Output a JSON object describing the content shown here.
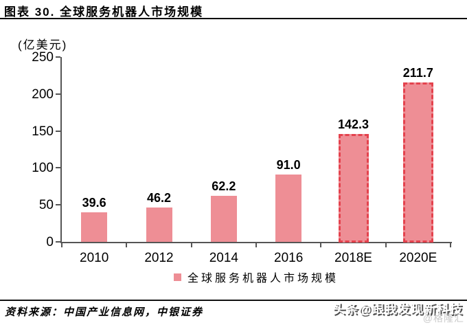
{
  "header": {
    "title": "图表 30. 全球服务机器人市场规模"
  },
  "chart_data": {
    "type": "bar",
    "title": "图表 30. 全球服务机器人市场规模",
    "unit_label": "(亿美元)",
    "categories": [
      "2010",
      "2012",
      "2014",
      "2016",
      "2018E",
      "2020E"
    ],
    "values": [
      39.6,
      46.2,
      62.2,
      91.0,
      142.3,
      211.7
    ],
    "value_labels": [
      "39.6",
      "46.2",
      "62.2",
      "91.0",
      "142.3",
      "211.7"
    ],
    "estimated": [
      false,
      false,
      false,
      false,
      true,
      true
    ],
    "ylim": [
      0,
      250
    ],
    "yticks": [
      0,
      50,
      100,
      150,
      200,
      250
    ],
    "xlabel": "",
    "ylabel": "(亿美元)",
    "grid": false,
    "legend_position": "bottom",
    "legend_label": "全球服务机器人市场规模",
    "colors": {
      "bar_fill": "#ee8e95",
      "estimate_border": "#e4424d",
      "axis": "#555555",
      "text": "#000000"
    }
  },
  "footer": {
    "source": "资料来源：中国产业信息网，中银证券"
  },
  "watermarks": {
    "main": "头条@跟我发现新科技",
    "secondary": "@格隆汇"
  }
}
